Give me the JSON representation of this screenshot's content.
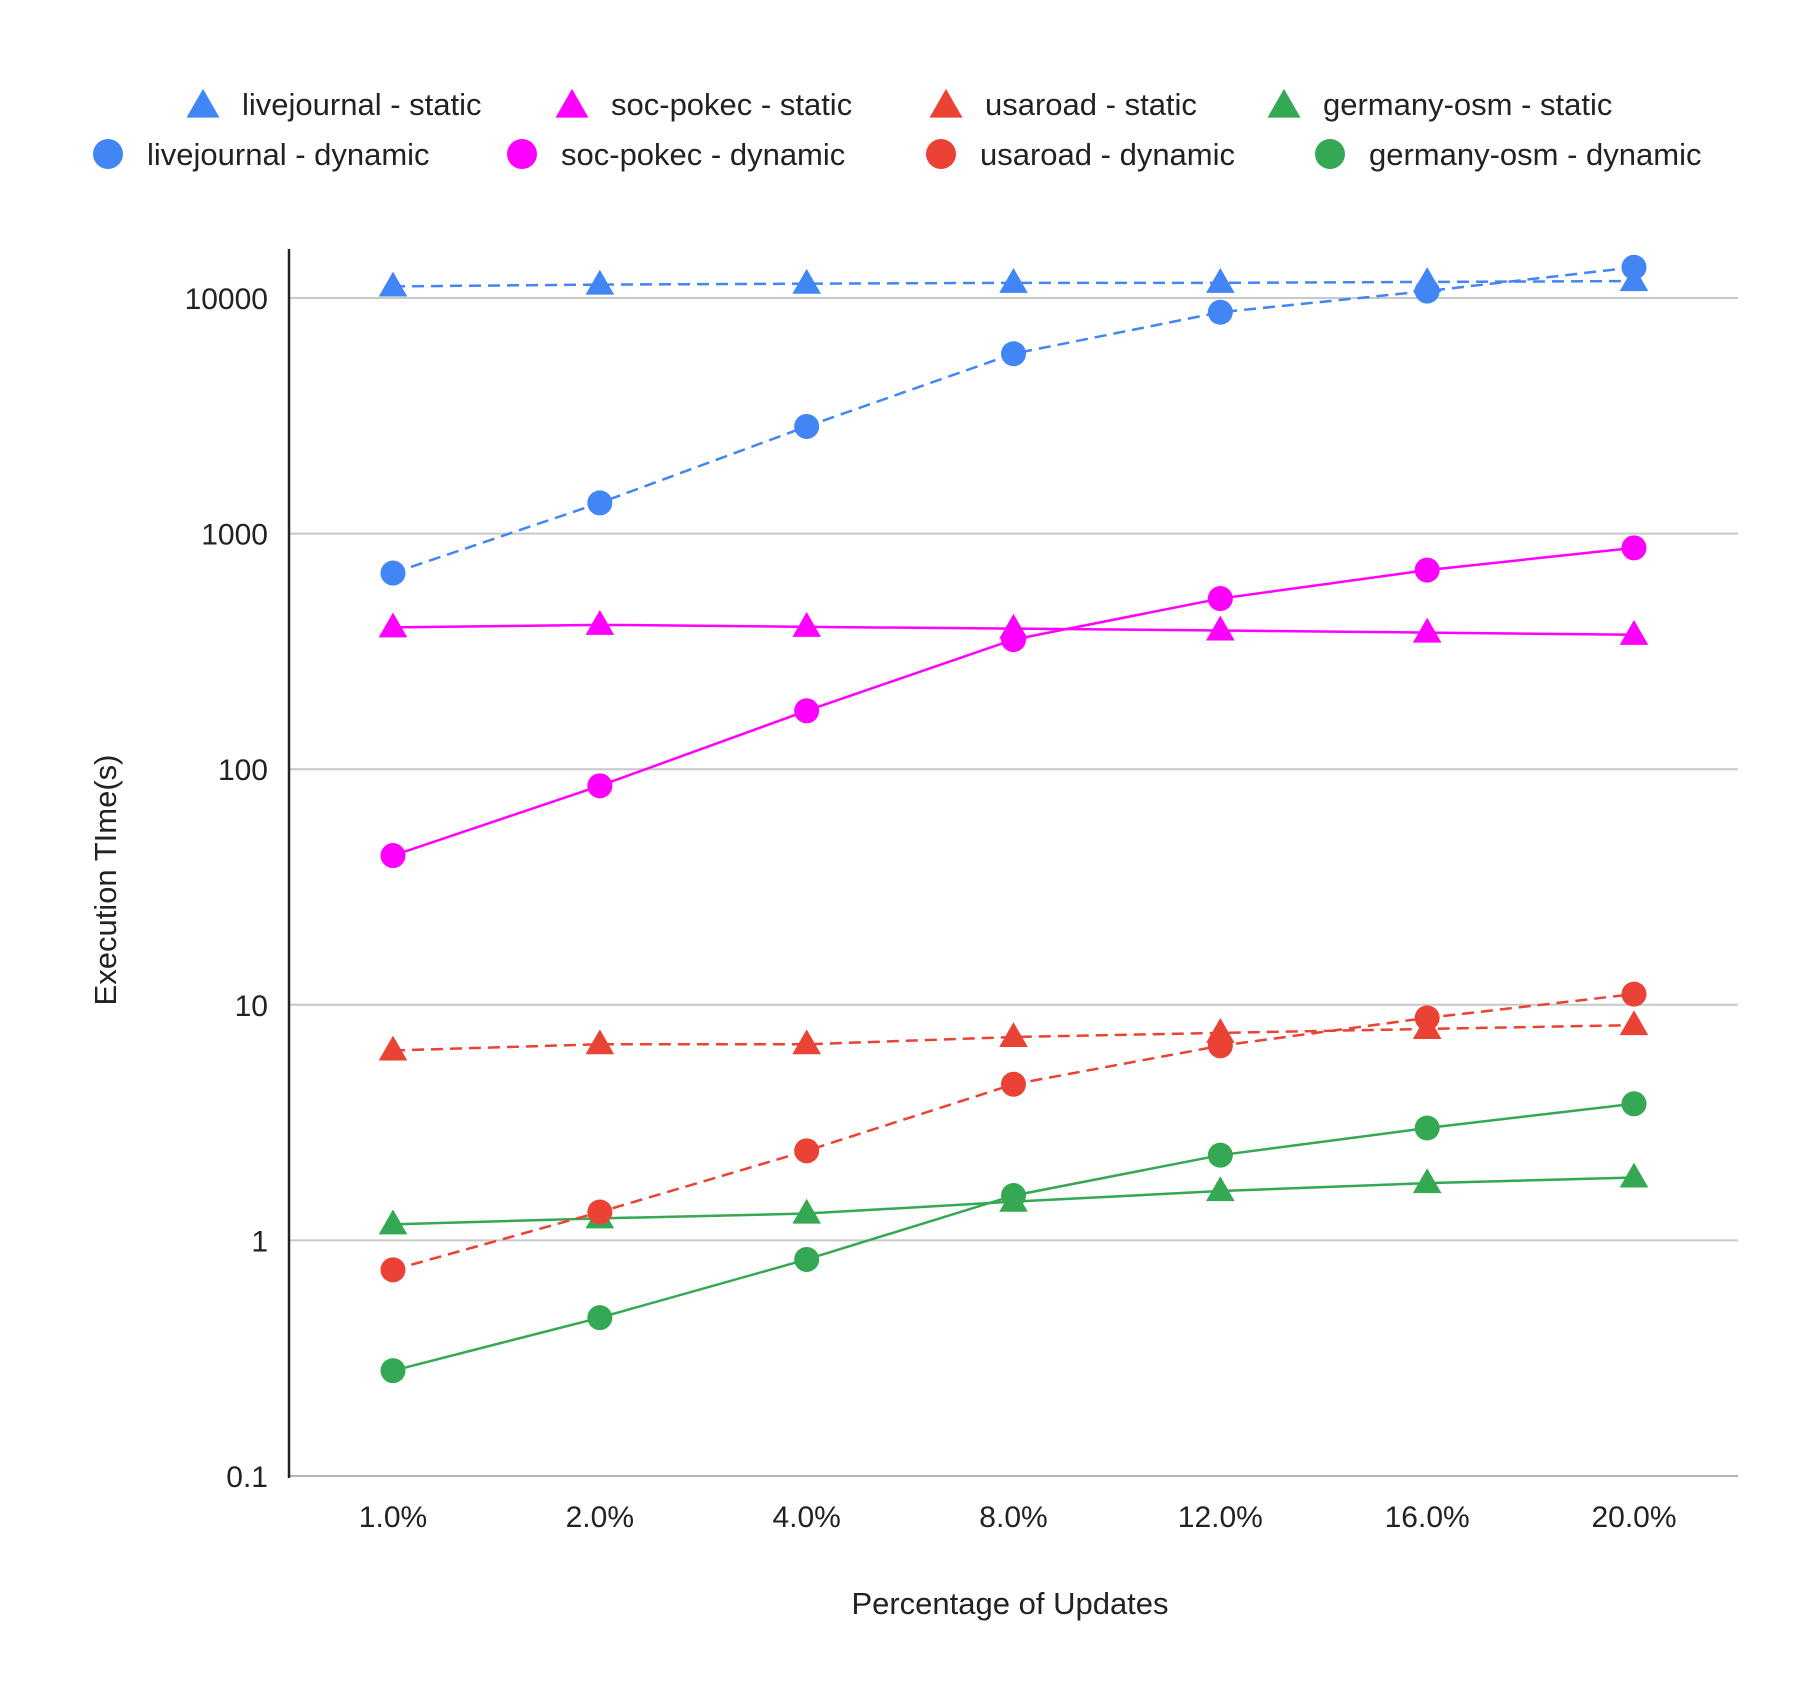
{
  "chart_data": {
    "type": "line",
    "title": "",
    "xlabel": "Percentage of Updates",
    "ylabel": "Execution TIme(s)",
    "yscale": "log",
    "ylim": [
      0.1,
      15000
    ],
    "yticks": [
      0.1,
      1,
      10,
      100,
      1000,
      10000
    ],
    "ytick_labels": [
      "0.1",
      "1",
      "10",
      "100",
      "1000",
      "10000"
    ],
    "categories": [
      "1.0%",
      "2.0%",
      "4.0%",
      "8.0%",
      "12.0%",
      "16.0%",
      "20.0%"
    ],
    "grid": "horizontal",
    "legend_position": "top",
    "series": [
      {
        "name": "livejournal - static",
        "color": "#4285F4",
        "marker": "triangle",
        "line": "dashed",
        "values": [
          11200,
          11400,
          11500,
          11600,
          11600,
          11700,
          11800
        ]
      },
      {
        "name": "soc-pokec - static",
        "color": "#FF00FF",
        "marker": "triangle",
        "line": "solid",
        "values": [
          400,
          410,
          402,
          395,
          388,
          380,
          372
        ]
      },
      {
        "name": "usaroad - static",
        "color": "#EA4335",
        "marker": "triangle",
        "line": "dashed",
        "values": [
          6.4,
          6.8,
          6.8,
          7.3,
          7.6,
          7.9,
          8.2
        ]
      },
      {
        "name": "germany-osm - static",
        "color": "#34A853",
        "marker": "triangle",
        "line": "solid",
        "values": [
          1.17,
          1.24,
          1.3,
          1.46,
          1.62,
          1.75,
          1.85
        ]
      },
      {
        "name": "livejournal - dynamic",
        "color": "#4285F4",
        "marker": "circle",
        "line": "dashed",
        "values": [
          680,
          1350,
          2850,
          5800,
          8700,
          10700,
          13500
        ]
      },
      {
        "name": "soc-pokec - dynamic",
        "color": "#FF00FF",
        "marker": "circle",
        "line": "solid",
        "values": [
          43,
          85,
          177,
          355,
          530,
          700,
          870
        ]
      },
      {
        "name": "usaroad - dynamic",
        "color": "#EA4335",
        "marker": "circle",
        "line": "dashed",
        "values": [
          0.75,
          1.32,
          2.4,
          4.6,
          6.7,
          8.8,
          11.1
        ]
      },
      {
        "name": "germany-osm - dynamic",
        "color": "#34A853",
        "marker": "circle",
        "line": "solid",
        "values": [
          0.28,
          0.47,
          0.83,
          1.55,
          2.3,
          3.0,
          3.8
        ]
      }
    ]
  }
}
